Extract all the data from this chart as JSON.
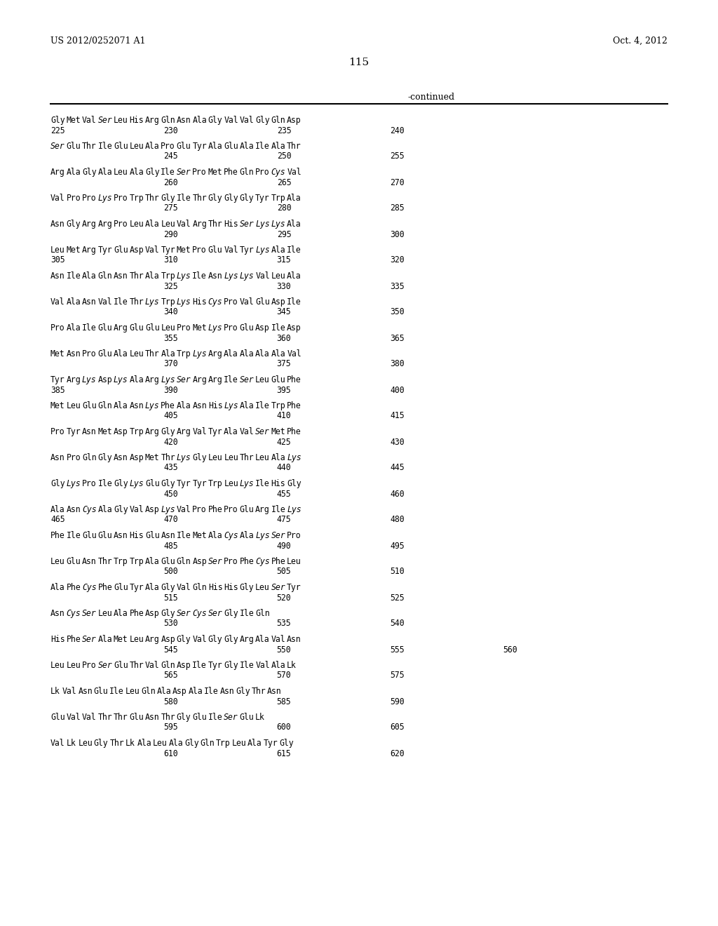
{
  "header_left": "US 2012/0252071 A1",
  "header_right": "Oct. 4, 2012",
  "page_number": "115",
  "continued_label": "-continued",
  "background_color": "#ffffff",
  "text_color": "#000000",
  "sequences": [
    {
      "seq": "Gly Met Val Ser Leu His Arg Gln Asn Ala Gly Val Val Gly Gln Asp",
      "nums": [
        [
          "225",
          0
        ],
        [
          "230",
          5
        ],
        [
          "235",
          10
        ],
        [
          "240",
          15
        ]
      ]
    },
    {
      "seq": "Ser Glu Thr Ile Glu Leu Ala Pro Glu Tyr Ala Glu Ala Ile Ala Thr",
      "nums": [
        [
          "245",
          5
        ],
        [
          "250",
          10
        ],
        [
          "255",
          15
        ]
      ]
    },
    {
      "seq": "Arg Ala Gly Ala Leu Ala Gly Ile Ser Pro Met Phe Gln Pro Cys Val",
      "nums": [
        [
          "260",
          5
        ],
        [
          "265",
          10
        ],
        [
          "270",
          15
        ]
      ]
    },
    {
      "seq": "Val Pro Pro Lys Pro Trp Thr Gly Ile Thr Gly Gly Gly Tyr Trp Ala",
      "nums": [
        [
          "275",
          5
        ],
        [
          "280",
          10
        ],
        [
          "285",
          15
        ]
      ]
    },
    {
      "seq": "Asn Gly Arg Arg Pro Leu Ala Leu Val Arg Thr His Ser Lys Lys Ala",
      "nums": [
        [
          "290",
          5
        ],
        [
          "295",
          10
        ],
        [
          "300",
          15
        ]
      ]
    },
    {
      "seq": "Leu Met Arg Tyr Glu Asp Val Tyr Met Pro Glu Val Tyr Lys Ala Ile",
      "nums": [
        [
          "305",
          0
        ],
        [
          "310",
          5
        ],
        [
          "315",
          10
        ],
        [
          "320",
          15
        ]
      ]
    },
    {
      "seq": "Asn Ile Ala Gln Asn Thr Ala Trp Lys Ile Asn Lys Lys Val Leu Ala",
      "nums": [
        [
          "325",
          5
        ],
        [
          "330",
          10
        ],
        [
          "335",
          15
        ]
      ]
    },
    {
      "seq": "Val Ala Asn Val Ile Thr Lys Trp Lys His Cys Pro Val Glu Asp Ile",
      "nums": [
        [
          "340",
          5
        ],
        [
          "345",
          10
        ],
        [
          "350",
          15
        ]
      ]
    },
    {
      "seq": "Pro Ala Ile Glu Arg Glu Glu Leu Pro Met Lys Pro Glu Asp Ile Asp",
      "nums": [
        [
          "355",
          5
        ],
        [
          "360",
          10
        ],
        [
          "365",
          15
        ]
      ]
    },
    {
      "seq": "Met Asn Pro Glu Ala Leu Thr Ala Trp Lys Arg Ala Ala Ala Ala Val",
      "nums": [
        [
          "370",
          5
        ],
        [
          "375",
          10
        ],
        [
          "380",
          15
        ]
      ]
    },
    {
      "seq": "Tyr Arg Lys Asp Lys Ala Arg Lys Ser Arg Arg Ile Ser Leu Glu Phe",
      "nums": [
        [
          "385",
          0
        ],
        [
          "390",
          5
        ],
        [
          "395",
          10
        ],
        [
          "400",
          15
        ]
      ]
    },
    {
      "seq": "Met Leu Glu Gln Ala Asn Lys Phe Ala Asn His Lys Ala Ile Trp Phe",
      "nums": [
        [
          "405",
          5
        ],
        [
          "410",
          10
        ],
        [
          "415",
          15
        ]
      ]
    },
    {
      "seq": "Pro Tyr Asn Met Asp Trp Arg Gly Arg Val Tyr Ala Val Ser Met Phe",
      "nums": [
        [
          "420",
          5
        ],
        [
          "425",
          10
        ],
        [
          "430",
          15
        ]
      ]
    },
    {
      "seq": "Asn Pro Gln Gly Asn Asp Met Thr Lys Gly Leu Leu Thr Leu Ala Lys",
      "nums": [
        [
          "435",
          5
        ],
        [
          "440",
          10
        ],
        [
          "445",
          15
        ]
      ]
    },
    {
      "seq": "Gly Lys Pro Ile Gly Lys Glu Gly Tyr Tyr Trp Leu Lys Ile His Gly",
      "nums": [
        [
          "450",
          5
        ],
        [
          "455",
          10
        ],
        [
          "460",
          15
        ]
      ]
    },
    {
      "seq": "Ala Asn Cys Ala Gly Val Asp Lys Val Pro Phe Pro Glu Arg Ile Lys",
      "nums": [
        [
          "465",
          0
        ],
        [
          "470",
          5
        ],
        [
          "475",
          10
        ],
        [
          "480",
          15
        ]
      ]
    },
    {
      "seq": "Phe Ile Glu Glu Asn His Glu Asn Ile Met Ala Cys Ala Lys Ser Pro",
      "nums": [
        [
          "485",
          5
        ],
        [
          "490",
          10
        ],
        [
          "495",
          15
        ]
      ]
    },
    {
      "seq": "Leu Glu Asn Thr Trp Trp Ala Glu Gln Asp Ser Pro Phe Cys Phe Leu",
      "nums": [
        [
          "500",
          5
        ],
        [
          "505",
          10
        ],
        [
          "510",
          15
        ]
      ]
    },
    {
      "seq": "Ala Phe Cys Phe Glu Tyr Ala Gly Val Gln His His Gly Leu Ser Tyr",
      "nums": [
        [
          "515",
          5
        ],
        [
          "520",
          10
        ],
        [
          "525",
          15
        ]
      ]
    },
    {
      "seq": "Asn Cys Ser Leu Ala Phe Asp Gly Ser Cys Ser Gly Ile Gln",
      "nums": [
        [
          "530",
          5
        ],
        [
          "535",
          10
        ],
        [
          "540",
          15
        ]
      ]
    },
    {
      "seq": "His Phe Ser Ala Met Leu Arg Asp Gly Val Gly Gly Arg Ala Val Asn",
      "nums": [
        [
          "545",
          5
        ],
        [
          "550",
          10
        ],
        [
          "555",
          15
        ],
        [
          "560",
          20
        ]
      ]
    },
    {
      "seq": "Leu Leu Pro Ser Glu Thr Val Gln Asp Ile Tyr Gly Ile Val Ala Lk",
      "nums": [
        [
          "565",
          5
        ],
        [
          "570",
          10
        ],
        [
          "575",
          15
        ]
      ]
    },
    {
      "seq": "Lk Val Asn Glu Ile Leu Gln Ala Asp Ala Ile Asn Gly Thr Asn",
      "nums": [
        [
          "580",
          5
        ],
        [
          "585",
          10
        ],
        [
          "590",
          15
        ]
      ]
    },
    {
      "seq": "Glu Val Val Thr Thr Glu Asn Thr Gly Glu Ile Ser Glu Lk",
      "nums": [
        [
          "595",
          5
        ],
        [
          "600",
          10
        ],
        [
          "605",
          15
        ]
      ]
    },
    {
      "seq": "Val Lk Leu Gly Thr Lk Ala Leu Ala Gly Gln Trp Leu Ala Tyr Gly",
      "nums": [
        [
          "610",
          5
        ],
        [
          "615",
          10
        ],
        [
          "620",
          15
        ]
      ]
    }
  ],
  "italic_words": [
    "Cys",
    "Lys",
    "Ser"
  ]
}
